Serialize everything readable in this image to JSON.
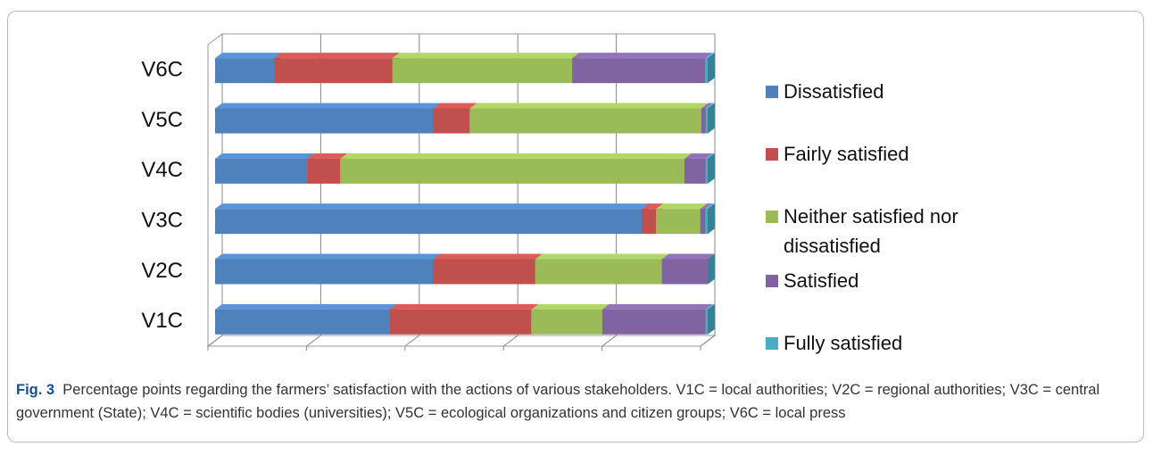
{
  "chart_data": {
    "type": "stacked-barh-3d",
    "categories": [
      "V1C",
      "V2C",
      "V3C",
      "V4C",
      "V5C",
      "V6C"
    ],
    "series": [
      {
        "name": "Dissatisfied",
        "color": "#4f81bd",
        "values": [
          35.4,
          44.3,
          86.6,
          18.7,
          44.3,
          12
        ]
      },
      {
        "name": "Fairly satisfied",
        "color": "#c0504d",
        "values": [
          28.8,
          20.7,
          2.9,
          6.7,
          7.4,
          24
        ]
      },
      {
        "name": "Neither satisfied nor dissatisfied",
        "color": "#9bbb59",
        "values": [
          14.4,
          25.7,
          9,
          69.9,
          47,
          36.5
        ]
      },
      {
        "name": "Satisfied",
        "color": "#8064a2",
        "values": [
          21,
          9.3,
          1,
          4.3,
          0.9,
          27
        ]
      },
      {
        "name": "Fully satisfied",
        "color": "#4bacc6",
        "values": [
          0.4,
          0,
          0.5,
          0.4,
          0.4,
          0.5
        ]
      }
    ],
    "xlim": [
      0,
      100
    ],
    "xticks": [
      {
        "value": 0,
        "label": "0%"
      },
      {
        "value": 20,
        "label": "20%"
      },
      {
        "value": 40,
        "label": "40%"
      },
      {
        "value": 60,
        "label": "60%"
      },
      {
        "value": 80,
        "label": "80%"
      },
      {
        "value": 100,
        "label": "100%"
      }
    ],
    "grid": true,
    "legend": "right",
    "caption": {
      "label": "Fig. 3",
      "text": "Percentage points regarding the farmers’ satisfaction with the actions of various stakeholders. V1C = local authorities; V2C = regional authorities; V3C = central government (State); V4C = scientific bodies (universities); V5C = ecological organizations and citizen groups; V6C = local press"
    }
  }
}
